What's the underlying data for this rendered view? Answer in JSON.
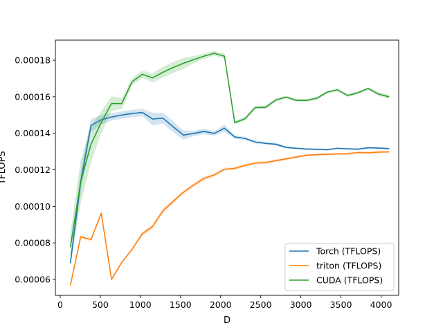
{
  "chart_data": {
    "type": "line",
    "title": "",
    "xlabel": "D",
    "ylabel": "TFLOPS",
    "xlim": [
      -60,
      4220
    ],
    "ylim": [
      5.13e-05,
      0.000191
    ],
    "xticks": [
      0,
      500,
      1000,
      1500,
      2000,
      2500,
      3000,
      3500,
      4000
    ],
    "yticks": [
      6e-05,
      8e-05,
      0.0001,
      0.00012,
      0.00014,
      0.00016,
      0.00018
    ],
    "ytick_labels": [
      "0.00006",
      "0.00008",
      "0.00010",
      "0.00012",
      "0.00014",
      "0.00016",
      "0.00018"
    ],
    "grid": false,
    "legend_position": "lower-right",
    "x": [
      128,
      256,
      384,
      512,
      640,
      768,
      896,
      1024,
      1152,
      1280,
      1408,
      1536,
      1664,
      1792,
      1920,
      2048,
      2176,
      2304,
      2432,
      2560,
      2688,
      2816,
      2944,
      3072,
      3200,
      3328,
      3456,
      3584,
      3712,
      3840,
      3968,
      4096
    ],
    "series": [
      {
        "name": "Torch (TFLOPS)",
        "color": "#1f77b4",
        "values": [
          6.93e-05,
          0.0001135,
          0.0001443,
          0.0001474,
          0.0001489,
          0.00015,
          0.0001508,
          0.0001514,
          0.0001478,
          0.0001483,
          0.0001436,
          0.000139,
          0.0001399,
          0.000141,
          0.0001399,
          0.0001428,
          0.000138,
          0.0001372,
          0.0001352,
          0.0001345,
          0.000134,
          0.0001323,
          0.0001318,
          0.0001314,
          0.0001312,
          0.000131,
          0.0001318,
          0.0001315,
          0.0001313,
          0.0001321,
          0.0001319,
          0.0001316
        ],
        "band": [
          3e-06,
          6e-06,
          3.5e-06,
          2.5e-06,
          2e-06,
          2e-06,
          2e-06,
          2e-06,
          3.5e-06,
          3e-06,
          3e-06,
          2.5e-06,
          1.5e-06,
          1.5e-06,
          1.2e-06,
          2e-06,
          1e-06,
          8e-07,
          8e-07,
          8e-07,
          8e-07,
          6e-07,
          6e-07,
          6e-07,
          5e-07,
          5e-07,
          5e-07,
          5e-07,
          5e-07,
          5e-07,
          5e-07,
          5e-07
        ]
      },
      {
        "name": "triton (TFLOPS)",
        "color": "#ff7f0e",
        "values": [
          5.7e-05,
          8.34e-05,
          8.18e-05,
          9.62e-05,
          6e-05,
          6.94e-05,
          7.65e-05,
          8.5e-05,
          8.9e-05,
          9.75e-05,
          0.0001027,
          0.0001077,
          0.0001117,
          0.0001153,
          0.0001172,
          0.0001203,
          0.0001208,
          0.0001224,
          0.0001237,
          0.000124,
          0.000125,
          0.000126,
          0.000127,
          0.000128,
          0.0001283,
          0.0001285,
          0.0001287,
          0.0001288,
          0.0001295,
          0.0001293,
          0.0001297,
          0.0001298
        ],
        "band": [
          8e-07,
          1e-06,
          8e-07,
          8e-07,
          8e-07,
          8e-07,
          8e-07,
          1.2e-06,
          1.2e-06,
          1.5e-06,
          1.2e-06,
          1e-06,
          1e-06,
          1.2e-06,
          1e-06,
          8e-07,
          8e-07,
          8e-07,
          8e-07,
          8e-07,
          8e-07,
          8e-07,
          8e-07,
          6e-07,
          6e-07,
          6e-07,
          6e-07,
          6e-07,
          6e-07,
          6e-07,
          6e-07,
          6e-07
        ]
      },
      {
        "name": "CUDA (TFLOPS)",
        "color": "#2ca02c",
        "values": [
          7.8e-05,
          0.0001135,
          0.000134,
          0.000146,
          0.0001563,
          0.0001563,
          0.0001682,
          0.0001723,
          0.0001703,
          0.0001734,
          0.000176,
          0.0001783,
          0.0001803,
          0.0001822,
          0.0001838,
          0.0001822,
          0.0001458,
          0.000148,
          0.0001541,
          0.0001542,
          0.0001582,
          0.0001598,
          0.000158,
          0.000158,
          0.0001592,
          0.0001625,
          0.0001638,
          0.0001607,
          0.0001622,
          0.0001645,
          0.0001615,
          0.00016
        ],
        "band": [
          8e-06,
          1.2e-05,
          1e-05,
          6e-06,
          4e-06,
          3e-06,
          2e-06,
          2e-06,
          2.5e-06,
          3e-06,
          3e-06,
          3e-06,
          2e-06,
          1.5e-06,
          1.2e-06,
          1.5e-06,
          1e-06,
          1e-06,
          1e-06,
          1e-06,
          1e-06,
          8e-07,
          8e-07,
          8e-07,
          8e-07,
          8e-07,
          8e-07,
          8e-07,
          8e-07,
          8e-07,
          1e-06,
          1.2e-06
        ]
      }
    ]
  }
}
